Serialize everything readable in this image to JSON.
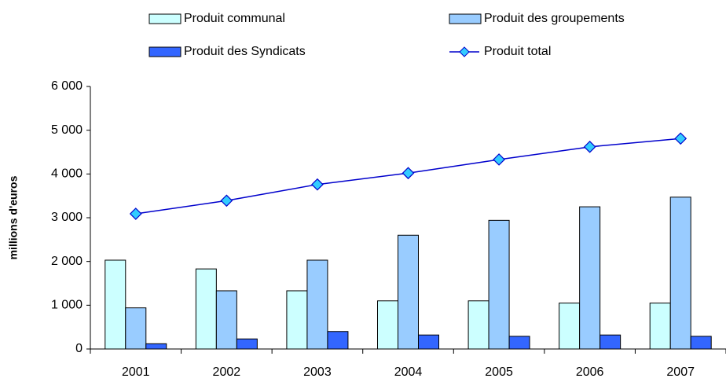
{
  "chart_data": {
    "type": "bar",
    "y_label": "millions d'euros",
    "categories": [
      "2001",
      "2002",
      "2003",
      "2004",
      "2005",
      "2006",
      "2007"
    ],
    "series": [
      {
        "name": "Produit communal",
        "color": "#ccffff",
        "values": [
          2030,
          1830,
          1330,
          1100,
          1100,
          1050,
          1050
        ]
      },
      {
        "name": "Produit des groupements",
        "color": "#99ccff",
        "values": [
          940,
          1330,
          2030,
          2600,
          2940,
          3250,
          3470
        ]
      },
      {
        "name": "Produit des Syndicats",
        "color": "#3366ff",
        "values": [
          120,
          230,
          400,
          320,
          290,
          320,
          290
        ]
      },
      {
        "name": "Produit total",
        "type": "line",
        "color": "#0000cc",
        "marker_color": "#33ccff",
        "values": [
          3090,
          3390,
          3760,
          4020,
          4330,
          4620,
          4810
        ]
      }
    ],
    "ylim": [
      0,
      6000
    ],
    "yticks": [
      0,
      {
        "value": 1000,
        "label": "1 000"
      },
      {
        "value": 2000,
        "label": "2 000"
      },
      {
        "value": 3000,
        "label": "3 000"
      },
      {
        "value": 4000,
        "label": "4 000"
      },
      {
        "value": 5000,
        "label": "5 000"
      },
      {
        "value": 6000,
        "label": "6 000"
      }
    ],
    "legend": "top",
    "grid": false
  }
}
